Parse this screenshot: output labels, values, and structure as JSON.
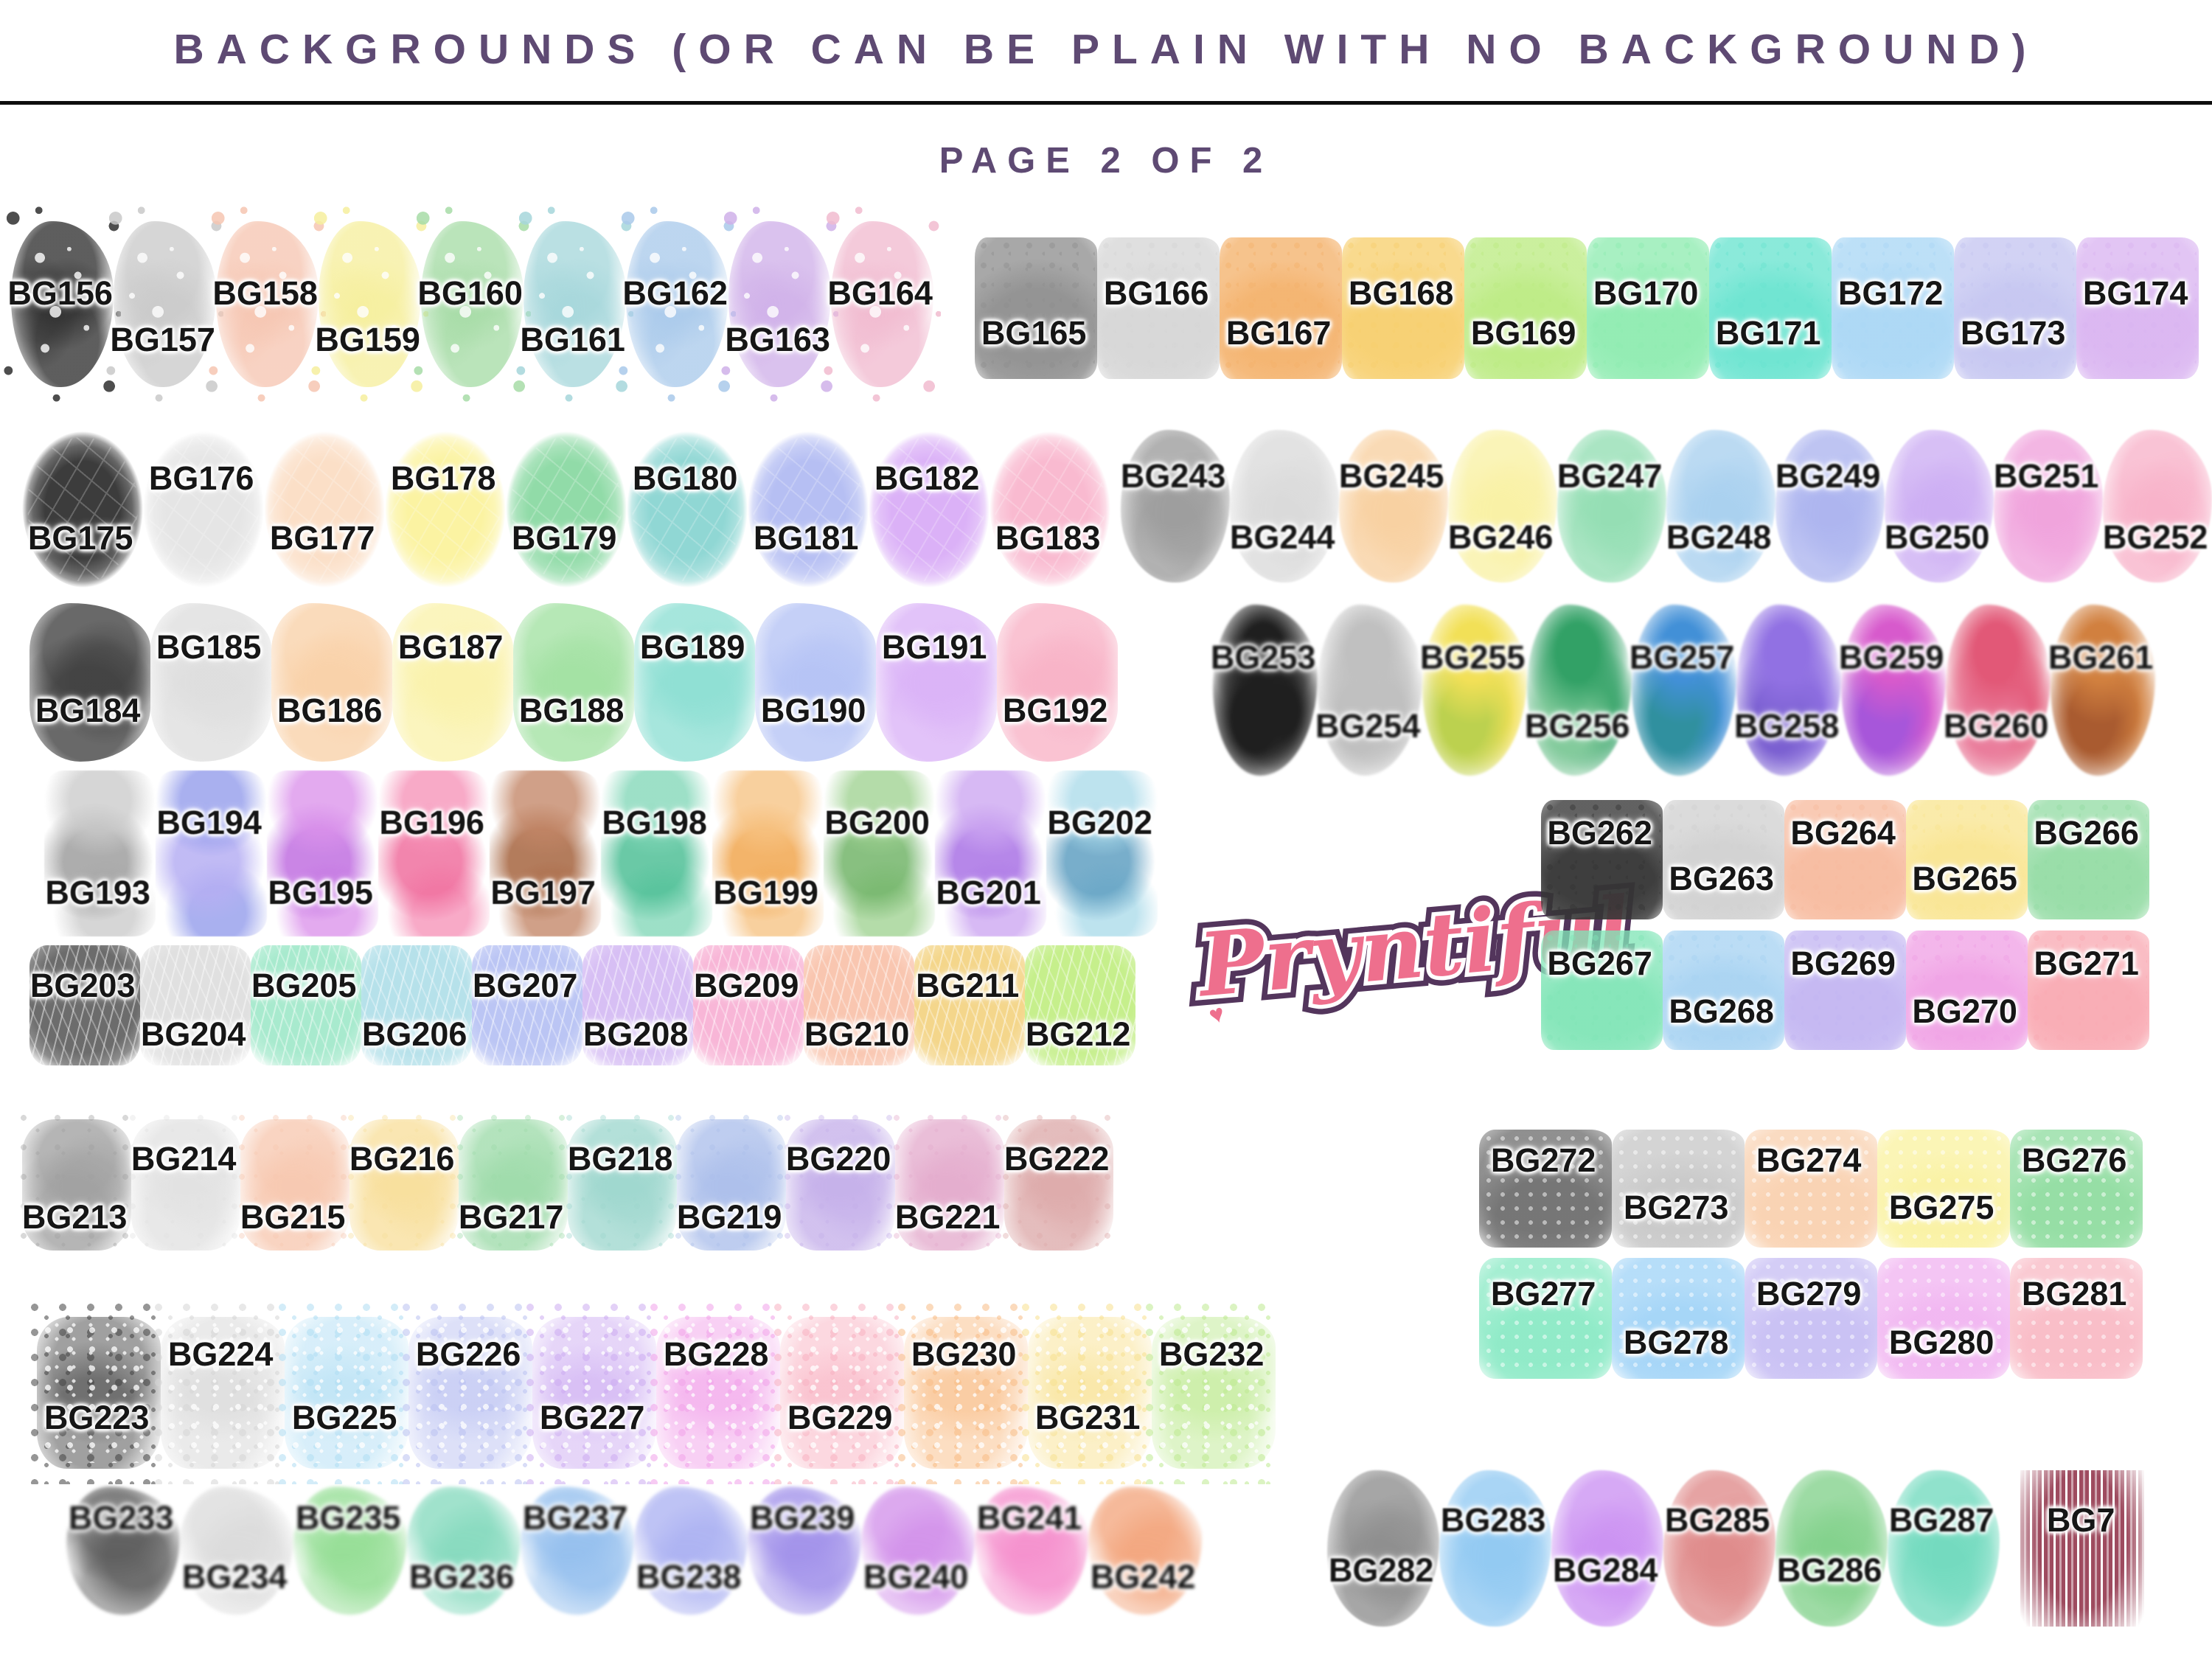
{
  "header": {
    "title": "BACKGROUNDS (OR CAN BE PLAIN WITH NO BACKGROUND)",
    "page_label": "PAGE 2 OF 2"
  },
  "logo": {
    "text": "Pryntiful",
    "heart_glyph": "♥"
  },
  "colors": {
    "accent_purple": "#5e4a73",
    "rule_black": "#0d0d0d",
    "label_black": "#161616",
    "logo_pink": "#ee6f8d",
    "logo_outline": "#53355c",
    "background": "#ffffff"
  },
  "groups": [
    {
      "name": "row1_left",
      "texture": "splat",
      "items": [
        {
          "id": "BG156",
          "color": "#303030",
          "label_pos": "high"
        },
        {
          "id": "BG157",
          "color": "#cacaca",
          "label_pos": "low"
        },
        {
          "id": "BG158",
          "color": "#f6c6b2",
          "label_pos": "high"
        },
        {
          "id": "BG159",
          "color": "#f6ef9e",
          "label_pos": "low"
        },
        {
          "id": "BG160",
          "color": "#a7dca7",
          "label_pos": "high"
        },
        {
          "id": "BG161",
          "color": "#a6d7db",
          "label_pos": "low"
        },
        {
          "id": "BG162",
          "color": "#aacaeb",
          "label_pos": "high"
        },
        {
          "id": "BG163",
          "color": "#d0b1e9",
          "label_pos": "low"
        },
        {
          "id": "BG164",
          "color": "#f1bbd0",
          "label_pos": "high"
        }
      ]
    },
    {
      "name": "row1_right",
      "texture": "sponge",
      "items": [
        {
          "id": "BG165",
          "color": "#8f8f8f",
          "label_pos": "low"
        },
        {
          "id": "BG166",
          "color": "#d6d6d6",
          "label_pos": "high"
        },
        {
          "id": "BG167",
          "color": "#f4b26c",
          "label_pos": "low"
        },
        {
          "id": "BG168",
          "color": "#f7cf6e",
          "label_pos": "high"
        },
        {
          "id": "BG169",
          "color": "#bceb83",
          "label_pos": "low"
        },
        {
          "id": "BG170",
          "color": "#8fecb1",
          "label_pos": "high"
        },
        {
          "id": "BG171",
          "color": "#6ae4d0",
          "label_pos": "low"
        },
        {
          "id": "BG172",
          "color": "#aad7f5",
          "label_pos": "high"
        },
        {
          "id": "BG173",
          "color": "#c5c6f1",
          "label_pos": "low"
        },
        {
          "id": "BG174",
          "color": "#dab5f1",
          "label_pos": "high"
        }
      ]
    },
    {
      "name": "row2_left",
      "texture": "oval",
      "items": [
        {
          "id": "BG175",
          "color": "#3c3c3c",
          "label_pos": "low"
        },
        {
          "id": "BG176",
          "color": "#e5e5e5",
          "label_pos": "high"
        },
        {
          "id": "BG177",
          "color": "#fbdfc7",
          "label_pos": "low"
        },
        {
          "id": "BG178",
          "color": "#fbf3a2",
          "label_pos": "high"
        },
        {
          "id": "BG179",
          "color": "#91dba8",
          "label_pos": "low"
        },
        {
          "id": "BG180",
          "color": "#90d7d4",
          "label_pos": "high"
        },
        {
          "id": "BG181",
          "color": "#b6bff3",
          "label_pos": "low"
        },
        {
          "id": "BG182",
          "color": "#dbb1f7",
          "label_pos": "high"
        },
        {
          "id": "BG183",
          "color": "#f9bad0",
          "label_pos": "low"
        }
      ]
    },
    {
      "name": "row2_right",
      "texture": "wash",
      "items": [
        {
          "id": "BG243",
          "color": "#9c9c9c",
          "label_pos": "high"
        },
        {
          "id": "BG244",
          "color": "#dadada",
          "label_pos": "low"
        },
        {
          "id": "BG245",
          "color": "#f8d0a0",
          "label_pos": "high"
        },
        {
          "id": "BG246",
          "color": "#f9f1a4",
          "label_pos": "low"
        },
        {
          "id": "BG247",
          "color": "#93deb3",
          "label_pos": "high"
        },
        {
          "id": "BG248",
          "color": "#a8d0ef",
          "label_pos": "low"
        },
        {
          "id": "BG249",
          "color": "#acb4ef",
          "label_pos": "high"
        },
        {
          "id": "BG250",
          "color": "#ccadf3",
          "label_pos": "low"
        },
        {
          "id": "BG251",
          "color": "#f0a2dc",
          "label_pos": "high"
        },
        {
          "id": "BG252",
          "color": "#f8b2c9",
          "label_pos": "low"
        }
      ]
    },
    {
      "name": "row3_left",
      "texture": "brush",
      "items": [
        {
          "id": "BG184",
          "color": "#3f3f3f",
          "label_pos": "low"
        },
        {
          "id": "BG185",
          "color": "#dedede",
          "label_pos": "high"
        },
        {
          "id": "BG186",
          "color": "#f9d1a8",
          "label_pos": "low"
        },
        {
          "id": "BG187",
          "color": "#faf2ab",
          "label_pos": "high"
        },
        {
          "id": "BG188",
          "color": "#a2e1a2",
          "label_pos": "low"
        },
        {
          "id": "BG189",
          "color": "#8ddfd3",
          "label_pos": "high"
        },
        {
          "id": "BG190",
          "color": "#b5c3f5",
          "label_pos": "low"
        },
        {
          "id": "BG191",
          "color": "#dab2f7",
          "label_pos": "high"
        },
        {
          "id": "BG192",
          "color": "#f8b2c6",
          "label_pos": "low"
        }
      ]
    },
    {
      "name": "row3_right",
      "texture": "smoke",
      "items": [
        {
          "id": "BG253",
          "color": "#1f1f1f",
          "label_pos": "high"
        },
        {
          "id": "BG254",
          "color": "#c0c0c0",
          "label_pos": "low"
        },
        {
          "id": "BG255",
          "color": "#f2e057",
          "color2": "#bcd14f",
          "label_pos": "high"
        },
        {
          "id": "BG256",
          "color": "#32a166",
          "color2": "#83cb9c",
          "label_pos": "low"
        },
        {
          "id": "BG257",
          "color": "#4290d7",
          "color2": "#30909f",
          "label_pos": "high"
        },
        {
          "id": "BG258",
          "color": "#9171e3",
          "color2": "#7b60d1",
          "label_pos": "low"
        },
        {
          "id": "BG259",
          "color": "#d75acc",
          "color2": "#a756da",
          "label_pos": "high"
        },
        {
          "id": "BG260",
          "color": "#e25877",
          "color2": "#ea7d9c",
          "label_pos": "low"
        },
        {
          "id": "BG261",
          "color": "#d1803f",
          "color2": "#a95b30",
          "label_pos": "high"
        }
      ]
    },
    {
      "name": "row4_left",
      "texture": "duo",
      "items": [
        {
          "id": "BG193",
          "color": "#cbcbcb",
          "color2": "#9f9f9f",
          "label_pos": "low"
        },
        {
          "id": "BG194",
          "color": "#919aeb",
          "color2": "#b6aff3",
          "label_pos": "high"
        },
        {
          "id": "BG195",
          "color": "#db92eb",
          "color2": "#c170e1",
          "label_pos": "low"
        },
        {
          "id": "BG196",
          "color": "#f692b8",
          "color2": "#f0709f",
          "label_pos": "high"
        },
        {
          "id": "BG197",
          "color": "#c38667",
          "color2": "#a66540",
          "label_pos": "low"
        },
        {
          "id": "BG198",
          "color": "#82d7b8",
          "color2": "#50c097",
          "label_pos": "high"
        },
        {
          "id": "BG199",
          "color": "#f7c383",
          "color2": "#f1a750",
          "label_pos": "low"
        },
        {
          "id": "BG200",
          "color": "#9fd291",
          "color2": "#73b56a",
          "label_pos": "high"
        },
        {
          "id": "BG201",
          "color": "#cca6f1",
          "color2": "#a972e5",
          "label_pos": "low"
        },
        {
          "id": "BG202",
          "color": "#abdbea",
          "color2": "#61a0c2",
          "label_pos": "high"
        }
      ]
    },
    {
      "name": "row4_right_a",
      "texture": "sponge",
      "items": [
        {
          "id": "BG262",
          "color": "#353535",
          "label_pos": "high"
        },
        {
          "id": "BG263",
          "color": "#d1d1d1",
          "label_pos": "low"
        },
        {
          "id": "BG264",
          "color": "#f7bb9f",
          "label_pos": "high"
        },
        {
          "id": "BG265",
          "color": "#f9e592",
          "label_pos": "low"
        },
        {
          "id": "BG266",
          "color": "#95dca5",
          "label_pos": "high"
        }
      ]
    },
    {
      "name": "row4_right_b",
      "texture": "sponge",
      "items": [
        {
          "id": "BG267",
          "color": "#81e5b7",
          "label_pos": "high"
        },
        {
          "id": "BG268",
          "color": "#a8d3f2",
          "label_pos": "low"
        },
        {
          "id": "BG269",
          "color": "#c3b6f2",
          "label_pos": "high"
        },
        {
          "id": "BG270",
          "color": "#f0a2e5",
          "label_pos": "low"
        },
        {
          "id": "BG271",
          "color": "#f9aab3",
          "label_pos": "high"
        }
      ]
    },
    {
      "name": "row5_left",
      "texture": "leaf",
      "items": [
        {
          "id": "BG203",
          "color": "#6c6c6c",
          "label_pos": "high"
        },
        {
          "id": "BG204",
          "color": "#e0e0e0",
          "label_pos": "low"
        },
        {
          "id": "BG205",
          "color": "#a8eace",
          "label_pos": "high"
        },
        {
          "id": "BG206",
          "color": "#b6e1ea",
          "label_pos": "low"
        },
        {
          "id": "BG207",
          "color": "#bbc5f4",
          "label_pos": "high"
        },
        {
          "id": "BG208",
          "color": "#d7bff4",
          "label_pos": "low"
        },
        {
          "id": "BG209",
          "color": "#f8b6d7",
          "label_pos": "high"
        },
        {
          "id": "BG210",
          "color": "#f9c6b0",
          "label_pos": "low"
        },
        {
          "id": "BG211",
          "color": "#f4d68b",
          "label_pos": "high"
        },
        {
          "id": "BG212",
          "color": "#c6ef8c",
          "label_pos": "low"
        }
      ]
    },
    {
      "name": "row6_left",
      "texture": "washdot",
      "items": [
        {
          "id": "BG213",
          "color": "#a0a0a0",
          "label_pos": "low"
        },
        {
          "id": "BG214",
          "color": "#e2e2e2",
          "label_pos": "high"
        },
        {
          "id": "BG215",
          "color": "#f7c8b0",
          "label_pos": "low"
        },
        {
          "id": "BG216",
          "color": "#f8df9c",
          "label_pos": "high"
        },
        {
          "id": "BG217",
          "color": "#9edbaa",
          "label_pos": "low"
        },
        {
          "id": "BG218",
          "color": "#9ed7ce",
          "label_pos": "high"
        },
        {
          "id": "BG219",
          "color": "#acbfeb",
          "label_pos": "low"
        },
        {
          "id": "BG220",
          "color": "#c5b0ea",
          "label_pos": "high"
        },
        {
          "id": "BG221",
          "color": "#e4accd",
          "label_pos": "low"
        },
        {
          "id": "BG222",
          "color": "#ddaaaa",
          "label_pos": "high"
        }
      ]
    },
    {
      "name": "row6_right_a",
      "texture": "lace",
      "items": [
        {
          "id": "BG272",
          "color": "#707070",
          "label_pos": "high"
        },
        {
          "id": "BG273",
          "color": "#c8c8c8",
          "label_pos": "low"
        },
        {
          "id": "BG274",
          "color": "#f9d1b0",
          "label_pos": "high"
        },
        {
          "id": "BG275",
          "color": "#faf2a2",
          "label_pos": "low"
        },
        {
          "id": "BG276",
          "color": "#91dda1",
          "label_pos": "high"
        }
      ]
    },
    {
      "name": "row6_right_b",
      "texture": "lace",
      "items": [
        {
          "id": "BG277",
          "color": "#8ceac6",
          "label_pos": "high"
        },
        {
          "id": "BG278",
          "color": "#a2d4f7",
          "label_pos": "low"
        },
        {
          "id": "BG279",
          "color": "#c8bff4",
          "label_pos": "high"
        },
        {
          "id": "BG280",
          "color": "#f1b5f1",
          "label_pos": "low"
        },
        {
          "id": "BG281",
          "color": "#f9bbc6",
          "label_pos": "high"
        }
      ]
    },
    {
      "name": "row7_left",
      "texture": "confetti",
      "items": [
        {
          "id": "BG223",
          "color": "#414141",
          "label_pos": "low"
        },
        {
          "id": "BG224",
          "color": "#d6d6d6",
          "label_pos": "high"
        },
        {
          "id": "BG225",
          "color": "#b0def4",
          "label_pos": "low"
        },
        {
          "id": "BG226",
          "color": "#bbc2f2",
          "label_pos": "high"
        },
        {
          "id": "BG227",
          "color": "#cdacf2",
          "label_pos": "low"
        },
        {
          "id": "BG228",
          "color": "#f2a2ea",
          "label_pos": "high"
        },
        {
          "id": "BG229",
          "color": "#f9b2c2",
          "label_pos": "low"
        },
        {
          "id": "BG230",
          "color": "#f9bd86",
          "label_pos": "high"
        },
        {
          "id": "BG231",
          "color": "#f8e190",
          "label_pos": "low"
        },
        {
          "id": "BG232",
          "color": "#beea91",
          "label_pos": "high"
        }
      ]
    },
    {
      "name": "row8_left",
      "texture": "cloud",
      "items": [
        {
          "id": "BG233",
          "color": "#5c5c5c",
          "label_pos": "high"
        },
        {
          "id": "BG234",
          "color": "#dbdbdb",
          "label_pos": "low"
        },
        {
          "id": "BG235",
          "color": "#95de95",
          "label_pos": "high"
        },
        {
          "id": "BG236",
          "color": "#86dabe",
          "label_pos": "low"
        },
        {
          "id": "BG237",
          "color": "#94bfee",
          "label_pos": "high"
        },
        {
          "id": "BG238",
          "color": "#acb2f2",
          "label_pos": "low"
        },
        {
          "id": "BG239",
          "color": "#a191ea",
          "label_pos": "high"
        },
        {
          "id": "BG240",
          "color": "#d291ea",
          "label_pos": "low"
        },
        {
          "id": "BG241",
          "color": "#f590cd",
          "label_pos": "high"
        },
        {
          "id": "BG242",
          "color": "#f3a67e",
          "label_pos": "low"
        }
      ]
    },
    {
      "name": "row8_right",
      "texture": "wash",
      "items": [
        {
          "id": "BG282",
          "color": "#8d8d8d",
          "label_pos": "low"
        },
        {
          "id": "BG283",
          "color": "#91c9f2",
          "label_pos": "high"
        },
        {
          "id": "BG284",
          "color": "#cb91f2",
          "label_pos": "low"
        },
        {
          "id": "BG285",
          "color": "#df8a8a",
          "label_pos": "high"
        },
        {
          "id": "BG286",
          "color": "#82d18b",
          "label_pos": "low"
        },
        {
          "id": "BG287",
          "color": "#71dabe",
          "label_pos": "high"
        },
        {
          "id": "BG7",
          "color": "#9e4b5f",
          "label_pos": "high",
          "texture": "streak"
        }
      ]
    }
  ]
}
